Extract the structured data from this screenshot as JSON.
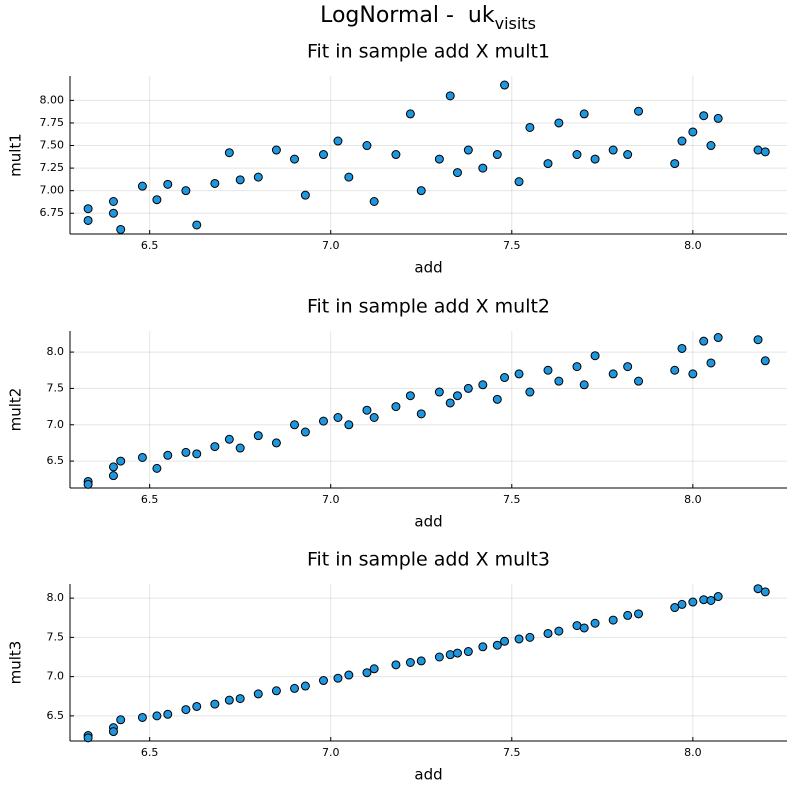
{
  "title": "LogNormal -  uk",
  "title_sub": "visits",
  "chart_data": [
    {
      "type": "scatter",
      "title": "Fit in sample add X mult1",
      "x_label": "add",
      "y_label": "mult1",
      "color": "#1f96e0",
      "grid": true,
      "xlim": [
        6.28,
        8.26
      ],
      "xticks": [
        6.5,
        {
          "value": 7.0,
          "label": "7.0"
        },
        7.5,
        {
          "value": 8.0,
          "label": "8.0"
        }
      ],
      "ylim": [
        6.52,
        8.27
      ],
      "yticks": [
        6.75,
        {
          "value": 7.0,
          "label": "7.00"
        },
        7.25,
        {
          "value": 7.5,
          "label": "7.50"
        },
        7.75,
        {
          "value": 8.0,
          "label": "8.00"
        }
      ],
      "x": [
        6.33,
        6.33,
        6.4,
        6.4,
        6.42,
        6.48,
        6.52,
        6.55,
        6.6,
        6.63,
        6.68,
        6.72,
        6.75,
        6.8,
        6.85,
        6.9,
        6.93,
        6.98,
        7.02,
        7.05,
        7.1,
        7.12,
        7.18,
        7.22,
        7.25,
        7.3,
        7.33,
        7.38,
        7.42,
        7.46,
        7.48,
        7.52,
        7.55,
        7.6,
        7.63,
        7.68,
        7.7,
        7.73,
        7.78,
        7.82,
        7.85,
        7.95,
        7.97,
        8.0,
        8.03,
        8.05,
        8.07,
        8.18,
        8.2,
        7.35
      ],
      "values": [
        6.8,
        6.67,
        6.88,
        6.75,
        6.57,
        7.05,
        6.9,
        7.07,
        7.0,
        6.62,
        7.08,
        7.42,
        7.12,
        7.15,
        7.45,
        7.35,
        6.95,
        7.4,
        7.55,
        7.15,
        7.5,
        6.88,
        7.4,
        7.85,
        7.0,
        7.35,
        8.05,
        7.45,
        7.25,
        7.4,
        8.17,
        7.1,
        7.7,
        7.3,
        7.75,
        7.4,
        7.85,
        7.35,
        7.45,
        7.4,
        7.88,
        7.3,
        7.55,
        7.65,
        7.83,
        7.5,
        7.8,
        7.45,
        7.43,
        7.2
      ]
    },
    {
      "type": "scatter",
      "title": "Fit in sample add X mult2",
      "x_label": "add",
      "y_label": "mult2",
      "color": "#1f96e0",
      "grid": true,
      "xlim": [
        6.28,
        8.26
      ],
      "xticks": [
        6.5,
        {
          "value": 7.0,
          "label": "7.0"
        },
        7.5,
        {
          "value": 8.0,
          "label": "8.0"
        }
      ],
      "ylim": [
        6.13,
        8.29
      ],
      "yticks": [
        6.5,
        {
          "value": 7.0,
          "label": "7.0"
        },
        7.5,
        {
          "value": 8.0,
          "label": "8.0"
        }
      ],
      "x": [
        6.33,
        6.33,
        6.4,
        6.4,
        6.42,
        6.48,
        6.52,
        6.55,
        6.6,
        6.63,
        6.68,
        6.72,
        6.75,
        6.8,
        6.85,
        6.9,
        6.93,
        6.98,
        7.02,
        7.05,
        7.1,
        7.12,
        7.18,
        7.22,
        7.25,
        7.3,
        7.33,
        7.38,
        7.42,
        7.46,
        7.48,
        7.52,
        7.55,
        7.6,
        7.63,
        7.68,
        7.7,
        7.73,
        7.78,
        7.82,
        7.85,
        7.95,
        7.97,
        8.0,
        8.03,
        8.05,
        8.07,
        8.18,
        8.2,
        7.35
      ],
      "values": [
        6.22,
        6.18,
        6.42,
        6.3,
        6.5,
        6.55,
        6.4,
        6.58,
        6.62,
        6.6,
        6.7,
        6.8,
        6.68,
        6.85,
        6.75,
        7.0,
        6.9,
        7.05,
        7.1,
        7.0,
        7.2,
        7.1,
        7.25,
        7.4,
        7.15,
        7.45,
        7.3,
        7.5,
        7.55,
        7.35,
        7.65,
        7.7,
        7.45,
        7.75,
        7.6,
        7.8,
        7.55,
        7.95,
        7.7,
        7.8,
        7.6,
        7.75,
        8.05,
        7.7,
        8.15,
        7.85,
        8.2,
        8.17,
        7.88,
        7.4
      ]
    },
    {
      "type": "scatter",
      "title": "Fit in sample add X mult3",
      "x_label": "add",
      "y_label": "mult3",
      "color": "#1f96e0",
      "grid": true,
      "xlim": [
        6.28,
        8.26
      ],
      "xticks": [
        6.5,
        {
          "value": 7.0,
          "label": "7.0"
        },
        7.5,
        {
          "value": 8.0,
          "label": "8.0"
        }
      ],
      "ylim": [
        6.18,
        8.18
      ],
      "yticks": [
        6.5,
        {
          "value": 7.0,
          "label": "7.0"
        },
        7.5,
        {
          "value": 8.0,
          "label": "8.0"
        }
      ],
      "x": [
        6.33,
        6.33,
        6.4,
        6.4,
        6.42,
        6.48,
        6.52,
        6.55,
        6.6,
        6.63,
        6.68,
        6.72,
        6.75,
        6.8,
        6.85,
        6.9,
        6.93,
        6.98,
        7.02,
        7.05,
        7.1,
        7.12,
        7.18,
        7.22,
        7.25,
        7.3,
        7.33,
        7.38,
        7.42,
        7.46,
        7.48,
        7.52,
        7.55,
        7.6,
        7.63,
        7.68,
        7.7,
        7.73,
        7.78,
        7.82,
        7.85,
        7.95,
        7.97,
        8.0,
        8.03,
        8.05,
        8.07,
        8.18,
        8.2,
        7.35
      ],
      "values": [
        6.25,
        6.22,
        6.35,
        6.3,
        6.45,
        6.48,
        6.5,
        6.52,
        6.58,
        6.62,
        6.65,
        6.7,
        6.72,
        6.78,
        6.82,
        6.85,
        6.88,
        6.95,
        6.98,
        7.02,
        7.05,
        7.1,
        7.15,
        7.18,
        7.2,
        7.25,
        7.28,
        7.32,
        7.38,
        7.4,
        7.45,
        7.48,
        7.5,
        7.55,
        7.58,
        7.65,
        7.62,
        7.68,
        7.72,
        7.78,
        7.8,
        7.88,
        7.92,
        7.95,
        7.98,
        7.97,
        8.02,
        8.12,
        8.08,
        7.3
      ]
    }
  ]
}
